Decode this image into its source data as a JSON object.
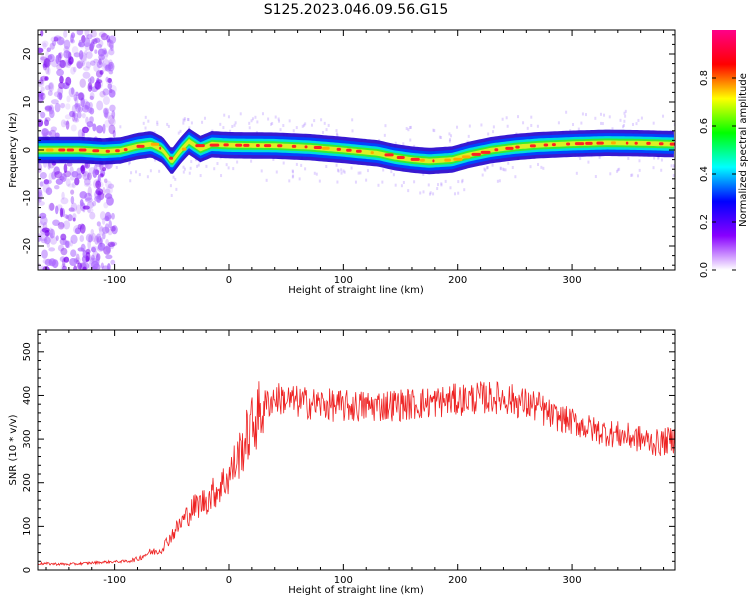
{
  "figure_title": "S125.2023.046.09.56.G15",
  "colors": {
    "snr_line": "#ee2222",
    "axes": "#000000",
    "spectrogram_background": "#ffffff"
  },
  "chart_data": [
    {
      "type": "heatmap",
      "title": "S125.2023.046.09.56.G15",
      "xlabel": "Height of straight line (km)",
      "ylabel": "Frequency (Hz)",
      "xlim": [
        -167,
        390
      ],
      "ylim": [
        -25,
        25
      ],
      "xticks": [
        -100,
        0,
        100,
        200,
        300
      ],
      "yticks": [
        -20,
        -10,
        0,
        10,
        20
      ],
      "ytick_labels": [
        "-20",
        "-10",
        "0",
        "10",
        "20"
      ],
      "grid": false,
      "colorbar": {
        "label": "Normalized spectral amplitude",
        "range": [
          0,
          1
        ],
        "ticks": [
          0.0,
          0.2,
          0.4,
          0.6,
          0.8
        ],
        "tick_labels": [
          "0.0",
          "0.2",
          "0.4",
          "0.6",
          "0.8"
        ],
        "colormap": [
          "#ffffff",
          "#8800ff",
          "#0000ff",
          "#00ffff",
          "#00ff00",
          "#ffff00",
          "#ff0000",
          "#ff0088"
        ]
      },
      "ridge": {
        "x": [
          -165,
          -130,
          -110,
          -95,
          -80,
          -68,
          -58,
          -50,
          -42,
          -35,
          -25,
          -15,
          0,
          40,
          70,
          100,
          130,
          145,
          160,
          175,
          195,
          210,
          230,
          250,
          270,
          300,
          330,
          360,
          390
        ],
        "frequency_hz": [
          0.0,
          0.0,
          -0.3,
          -0.1,
          0.8,
          1.2,
          0.0,
          -2.5,
          0.0,
          1.8,
          0.2,
          1.2,
          1.0,
          0.9,
          0.6,
          0.0,
          -0.7,
          -1.5,
          -2.0,
          -2.3,
          -2.0,
          -1.0,
          0.0,
          0.6,
          1.0,
          1.3,
          1.5,
          1.4,
          1.2
        ]
      },
      "noise_region_km": [
        -167,
        -100
      ]
    },
    {
      "type": "line",
      "xlabel": "Height of straight line (km)",
      "ylabel": "SNR (10 * v/v)",
      "xlim": [
        -167,
        390
      ],
      "ylim": [
        0,
        550
      ],
      "xticks": [
        -100,
        0,
        100,
        200,
        300
      ],
      "yticks": [
        0,
        100,
        200,
        300,
        400,
        500
      ],
      "grid": false,
      "series": [
        {
          "x": [
            -167,
            -140,
            -110,
            -90,
            -80,
            -70,
            -60,
            -50,
            -40,
            -30,
            -20,
            -10,
            0,
            10,
            20,
            30,
            40,
            60,
            80,
            100,
            120,
            140,
            160,
            180,
            200,
            220,
            240,
            260,
            270,
            280,
            300,
            320,
            340,
            360,
            375,
            390
          ],
          "values": [
            15,
            13,
            18,
            20,
            25,
            40,
            45,
            80,
            115,
            145,
            160,
            185,
            215,
            270,
            330,
            375,
            395,
            385,
            380,
            375,
            375,
            378,
            380,
            385,
            390,
            395,
            395,
            380,
            375,
            355,
            340,
            320,
            310,
            300,
            290,
            300
          ]
        }
      ]
    }
  ]
}
